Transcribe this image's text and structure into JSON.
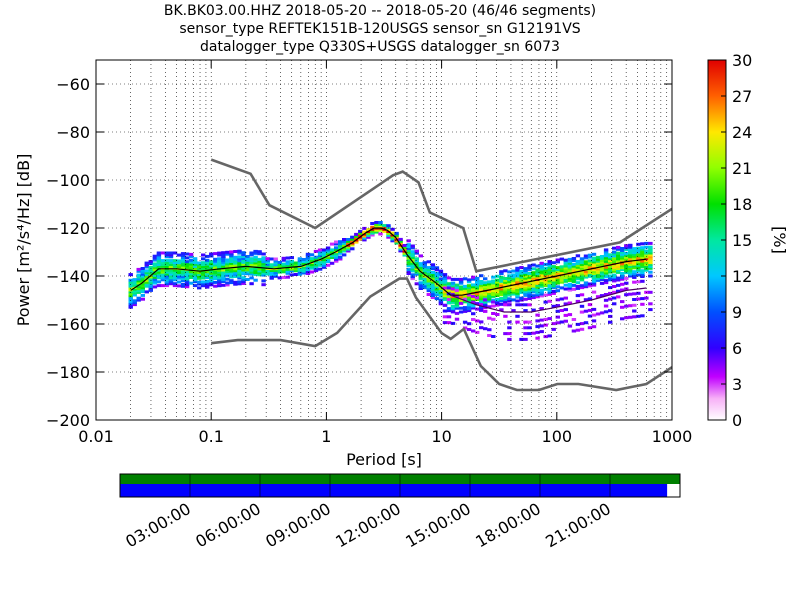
{
  "header": {
    "line1": "BK.BK03.00.HHZ   2018-05-20 -- 2018-05-20  (46/46 segments)",
    "line2": "sensor_type REFTEK151B-120USGS sensor_sn G12191VS",
    "line3": "datalogger_type Q330S+USGS datalogger_sn 6073"
  },
  "chart_data": {
    "type": "heatmap",
    "xlabel": "Period [s]",
    "ylabel": "Power [m²/s⁴/Hz] [dB]",
    "x_scale": "log",
    "xlim": [
      0.01,
      1000
    ],
    "ylim": [
      -200,
      -50
    ],
    "x_ticks": [
      "0.01",
      "0.1",
      "1",
      "10",
      "100",
      "1000"
    ],
    "y_ticks": [
      "−200",
      "−180",
      "−160",
      "−140",
      "−120",
      "−100",
      "−80",
      "−60"
    ],
    "grid": "dotted",
    "colorbar": {
      "label": "[%]",
      "range": [
        0,
        30
      ],
      "ticks": [
        "0",
        "3",
        "6",
        "9",
        "12",
        "15",
        "18",
        "21",
        "24",
        "27",
        "30"
      ]
    },
    "noise_models": [
      {
        "period": [
          0.1,
          0.22,
          0.32,
          0.8,
          3.8,
          4.6,
          6.3,
          7.9,
          15.4,
          20,
          354,
          1000
        ],
        "power": [
          -91.5,
          -97.4,
          -110.5,
          -120,
          -98,
          -96.5,
          -101,
          -113.5,
          -120,
          -138,
          -126,
          -112
        ]
      },
      {
        "period": [
          0.1,
          0.17,
          0.4,
          0.8,
          1.24,
          2.4,
          4.3,
          5,
          6,
          10,
          12,
          15.6,
          21.9,
          31.6,
          45,
          70,
          101,
          154,
          328,
          600,
          1000
        ],
        "power": [
          -168,
          -166.7,
          -166.7,
          -169.2,
          -163.7,
          -148.6,
          -141.1,
          -141.1,
          -149,
          -163.8,
          -166.2,
          -162.1,
          -177.5,
          -185,
          -187.5,
          -187.5,
          -185,
          -185,
          -187.5,
          -185,
          -178
        ]
      }
    ],
    "mode_line": {
      "period": [
        0.02,
        0.025,
        0.035,
        0.05,
        0.08,
        0.12,
        0.2,
        0.35,
        0.6,
        0.9,
        1.2,
        1.7,
        2.2,
        2.6,
        3,
        3.4,
        4,
        5,
        6.5,
        9,
        12,
        15,
        25,
        50,
        100,
        200,
        400,
        600
      ],
      "power": [
        -146,
        -143,
        -137,
        -137,
        -138,
        -137,
        -136,
        -137,
        -136,
        -133,
        -130,
        -126,
        -122,
        -120,
        -120,
        -121,
        -124,
        -131,
        -138,
        -143,
        -148,
        -148,
        -146,
        -143,
        -140,
        -137,
        -134,
        -133
      ]
    },
    "lower_branch": {
      "period": [
        12,
        20,
        35,
        60,
        100,
        200,
        400,
        600
      ],
      "power": [
        -148,
        -152,
        -155,
        -155,
        -153,
        -150,
        -146,
        -145
      ]
    },
    "time_axis": {
      "ticks": [
        "03:00:00",
        "06:00:00",
        "09:00:00",
        "12:00:00",
        "15:00:00",
        "18:00:00",
        "21:00:00"
      ],
      "coverage_fraction": 0.977
    }
  }
}
